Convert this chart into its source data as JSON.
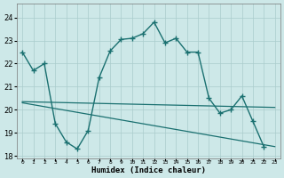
{
  "xlabel": "Humidex (Indice chaleur)",
  "bg_color": "#cde8e8",
  "grid_color": "#aacccc",
  "line_color": "#1a7070",
  "ylim": [
    17.9,
    24.6
  ],
  "yticks": [
    18,
    19,
    20,
    21,
    22,
    23,
    24
  ],
  "xlim": [
    -0.5,
    23.5
  ],
  "xticks": [
    0,
    1,
    2,
    3,
    4,
    5,
    6,
    7,
    8,
    9,
    10,
    11,
    12,
    13,
    14,
    15,
    16,
    17,
    18,
    19,
    20,
    21,
    22,
    23
  ],
  "main_x": [
    0,
    1,
    2,
    3,
    4,
    5,
    6,
    7,
    8,
    9,
    10,
    11,
    12,
    13,
    14,
    15,
    16,
    17,
    18,
    19,
    20,
    21,
    22
  ],
  "main_y": [
    22.5,
    21.7,
    22.0,
    19.4,
    18.6,
    18.3,
    19.1,
    21.4,
    22.55,
    23.05,
    23.1,
    23.3,
    23.8,
    22.9,
    23.1,
    22.5,
    22.5,
    20.5,
    19.85,
    20.0,
    20.6,
    19.5,
    18.4
  ],
  "trend1_x": [
    0,
    23
  ],
  "trend1_y": [
    20.35,
    20.1
  ],
  "trend2_x": [
    0,
    23
  ],
  "trend2_y": [
    20.3,
    18.4
  ],
  "xlabel_fontsize": 6,
  "xlabel_bold": true
}
